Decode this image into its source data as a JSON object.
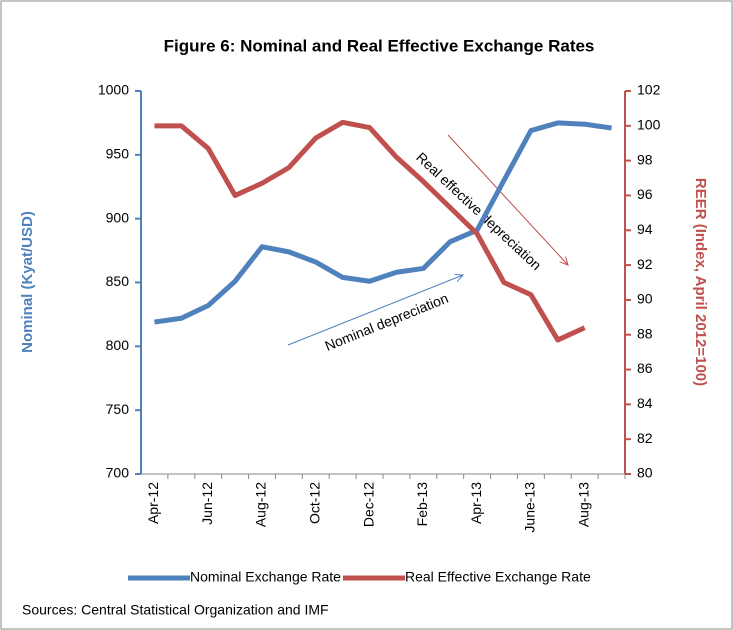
{
  "chart_data": {
    "type": "line",
    "title": "Figure 6: Nominal and Real Effective Exchange Rates",
    "y_label": "Nominal (Kyat/USD)",
    "y2_label": "REER (Index, April 2012=100)",
    "categories": [
      "Apr-12",
      null,
      "Jun-12",
      null,
      "Aug-12",
      null,
      "Oct-12",
      null,
      "Dec-12",
      null,
      "Feb-13",
      null,
      "Apr-13",
      null,
      "June-13",
      null,
      "Aug-13",
      null
    ],
    "series": [
      {
        "name": "Nominal Exchange Rate",
        "color": "#4f81bd",
        "values": [
          819,
          822,
          832,
          851,
          878,
          874,
          866,
          854,
          851,
          858,
          861,
          882,
          891,
          930,
          969,
          975,
          974,
          971
        ]
      },
      {
        "name": "Real Effective Exchange Rate",
        "color": "#c0504d",
        "axis": "y2",
        "values": [
          100,
          100,
          98.7,
          96,
          96.7,
          97.6,
          99.3,
          100.2,
          99.9,
          98.2,
          96.8,
          95.3,
          93.8,
          91,
          90.3,
          87.7,
          88.4,
          null
        ]
      }
    ],
    "ylim": [
      700,
      1000
    ],
    "yticks": [
      700,
      750,
      800,
      850,
      900,
      950,
      1000
    ],
    "y2lim": [
      80,
      102
    ],
    "y2ticks": [
      80,
      82,
      84,
      86,
      88,
      90,
      92,
      94,
      96,
      98,
      100,
      102
    ],
    "annotations": [
      "Real effective depreciation",
      "Nominal depreciation"
    ],
    "source": "Sources: Central Statistical Organization and  IMF",
    "legend": "bottom"
  }
}
